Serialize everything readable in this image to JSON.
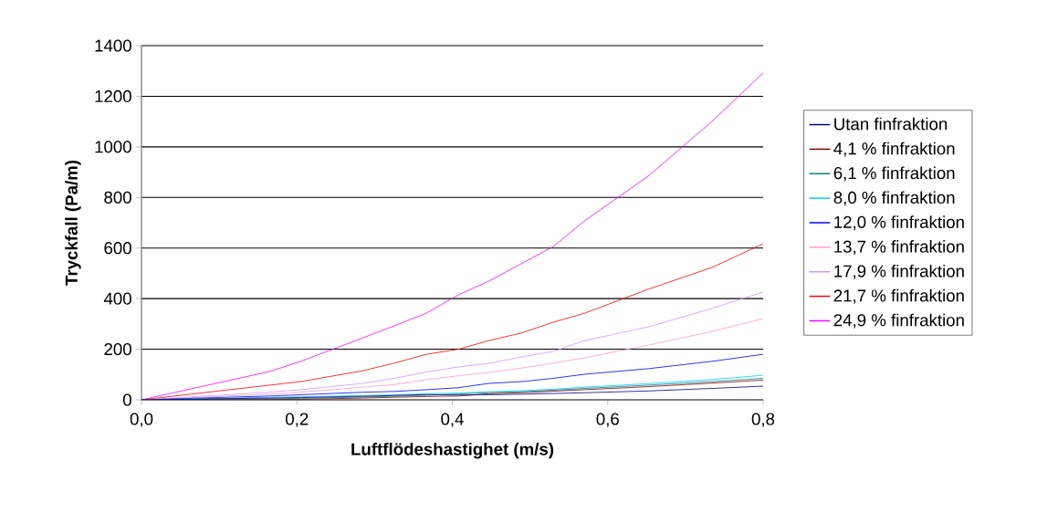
{
  "chart_data": {
    "type": "line",
    "xlabel": "Luftflödeshastighet (m/s)",
    "ylabel": "Tryckfall (Pa/m)",
    "x": [
      0,
      0.165,
      0.205,
      0.285,
      0.325,
      0.367,
      0.408,
      0.447,
      0.49,
      0.53,
      0.57,
      0.652,
      0.734,
      0.8
    ],
    "series": [
      {
        "name": "Utan finfraktion",
        "color": "#000080",
        "values": [
          0,
          7,
          9,
          14,
          17,
          21,
          19,
          20,
          22,
          25,
          28,
          35,
          45,
          54
        ]
      },
      {
        "name": "4,1 % finfraktion",
        "color": "#800000",
        "values": [
          0,
          1,
          2,
          7,
          10,
          13,
          15,
          24,
          28,
          34,
          40,
          52,
          66,
          78
        ]
      },
      {
        "name": "6,1 % finfraktion",
        "color": "#008080",
        "values": [
          0,
          4,
          6,
          11,
          14,
          18,
          23,
          28,
          32,
          38,
          45,
          58,
          72,
          85
        ]
      },
      {
        "name": "8,0 % finfraktion",
        "color": "#00ccff",
        "values": [
          0,
          10,
          12,
          17,
          20,
          24,
          27,
          32,
          36,
          42,
          50,
          64,
          80,
          97
        ]
      },
      {
        "name": "12,0 % finfraktion",
        "color": "#0000ff",
        "values": [
          0,
          15,
          20,
          30,
          33,
          40,
          48,
          65,
          72,
          85,
          101,
          123,
          152,
          180
        ]
      },
      {
        "name": "13,7 % finfraktion",
        "color": "#ff99cc",
        "values": [
          0,
          22,
          30,
          50,
          60,
          80,
          95,
          108,
          126,
          145,
          166,
          216,
          270,
          321
        ]
      },
      {
        "name": "17,9 % finfraktion",
        "color": "#cc99ff",
        "values": [
          0,
          30,
          40,
          65,
          85,
          110,
          130,
          144,
          170,
          191,
          234,
          288,
          361,
          426
        ]
      },
      {
        "name": "21,7 % finfraktion",
        "color": "#ff0000",
        "values": [
          0,
          58,
          72,
          115,
          145,
          180,
          200,
          234,
          265,
          307,
          342,
          437,
          523,
          617
        ]
      },
      {
        "name": "24,9 % finfraktion",
        "color": "#ff00ff",
        "values": [
          0,
          112,
          152,
          245,
          292,
          343,
          415,
          469,
          540,
          606,
          707,
          884,
          1100,
          1292
        ]
      }
    ],
    "xlim": [
      0,
      0.8
    ],
    "ylim": [
      0,
      1400
    ],
    "xticks": [
      {
        "value": 0,
        "label": "0,0"
      },
      {
        "value": 0.2,
        "label": "0,2"
      },
      {
        "value": 0.4,
        "label": "0,4"
      },
      {
        "value": 0.6,
        "label": "0,6"
      },
      {
        "value": 0.8,
        "label": "0,8"
      }
    ],
    "yticks": [
      0,
      200,
      400,
      600,
      800,
      1000,
      1200,
      1400
    ],
    "grid": "y",
    "legend": "right"
  }
}
